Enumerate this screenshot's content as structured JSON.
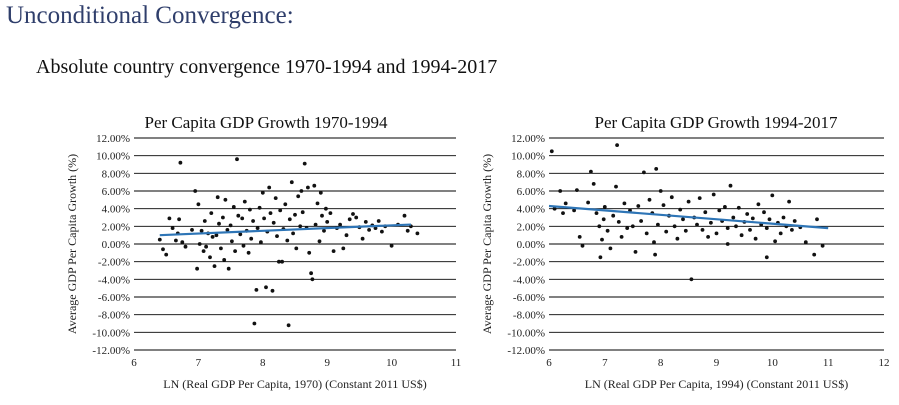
{
  "header": {
    "title": "Unconditional Convergence:",
    "subtitle": "Absolute country convergence 1970-1994 and 1994-2017"
  },
  "colors": {
    "title": "#2f3e6b",
    "trend": "#2e75b6",
    "point": "#111111",
    "grid": "#000000"
  },
  "chart_data": [
    {
      "type": "scatter",
      "title": "Per Capita GDP Growth 1970-1994",
      "xlabel": "LN (Real GDP Per Capita, 1970) (Constant 2011 US$)",
      "ylabel": "Average GDP Per Capita Growth (%)",
      "xlim": [
        6,
        11
      ],
      "ylim": [
        -12,
        12
      ],
      "x_ticks": [
        6,
        7,
        8,
        9,
        10,
        11
      ],
      "y_ticks": [
        12,
        10,
        8,
        6,
        4,
        2,
        0,
        -2,
        -4,
        -6,
        -8,
        -10,
        -12
      ],
      "y_tick_labels": [
        "12.00%",
        "10.00%",
        "8.00%",
        "6.00%",
        "4.00%",
        "2.00%",
        "0.00%",
        "-2.00%",
        "-4.00%",
        "-6.00%",
        "-8.00%",
        "-10.00%",
        "-12.00%"
      ],
      "grid": true,
      "trend": {
        "x": [
          6.4,
          10.3
        ],
        "y": [
          1.0,
          2.2
        ]
      },
      "points": [
        [
          6.4,
          0.5
        ],
        [
          6.45,
          -0.6
        ],
        [
          6.5,
          -1.2
        ],
        [
          6.55,
          2.9
        ],
        [
          6.6,
          1.8
        ],
        [
          6.65,
          0.4
        ],
        [
          6.68,
          1.2
        ],
        [
          6.7,
          2.8
        ],
        [
          6.72,
          9.2
        ],
        [
          6.75,
          0.2
        ],
        [
          6.8,
          -0.3
        ],
        [
          6.9,
          1.6
        ],
        [
          6.95,
          6.0
        ],
        [
          6.98,
          -2.8
        ],
        [
          7.0,
          4.5
        ],
        [
          7.02,
          0.0
        ],
        [
          7.05,
          1.5
        ],
        [
          7.08,
          -0.8
        ],
        [
          7.1,
          2.6
        ],
        [
          7.12,
          -0.3
        ],
        [
          7.15,
          1.2
        ],
        [
          7.18,
          -1.5
        ],
        [
          7.2,
          3.5
        ],
        [
          7.22,
          0.8
        ],
        [
          7.25,
          -2.5
        ],
        [
          7.28,
          1.0
        ],
        [
          7.3,
          5.3
        ],
        [
          7.32,
          2.3
        ],
        [
          7.35,
          -0.5
        ],
        [
          7.38,
          3.0
        ],
        [
          7.4,
          -1.8
        ],
        [
          7.42,
          5.0
        ],
        [
          7.45,
          1.6
        ],
        [
          7.47,
          -2.8
        ],
        [
          7.5,
          2.1
        ],
        [
          7.52,
          0.3
        ],
        [
          7.55,
          4.2
        ],
        [
          7.57,
          -0.8
        ],
        [
          7.6,
          9.6
        ],
        [
          7.62,
          3.2
        ],
        [
          7.65,
          1.1
        ],
        [
          7.68,
          2.9
        ],
        [
          7.7,
          -0.2
        ],
        [
          7.72,
          4.8
        ],
        [
          7.75,
          1.5
        ],
        [
          7.78,
          -1.0
        ],
        [
          7.8,
          3.9
        ],
        [
          7.82,
          0.6
        ],
        [
          7.85,
          2.6
        ],
        [
          7.87,
          -9.0
        ],
        [
          7.9,
          -5.2
        ],
        [
          7.92,
          1.8
        ],
        [
          7.95,
          4.1
        ],
        [
          7.97,
          0.2
        ],
        [
          8.0,
          5.8
        ],
        [
          8.02,
          2.9
        ],
        [
          8.05,
          -4.9
        ],
        [
          8.07,
          1.4
        ],
        [
          8.1,
          6.4
        ],
        [
          8.12,
          3.5
        ],
        [
          8.15,
          -5.3
        ],
        [
          8.17,
          2.4
        ],
        [
          8.2,
          5.2
        ],
        [
          8.22,
          0.9
        ],
        [
          8.25,
          -2.0
        ],
        [
          8.27,
          3.8
        ],
        [
          8.3,
          -2.0
        ],
        [
          8.32,
          1.7
        ],
        [
          8.35,
          4.5
        ],
        [
          8.38,
          0.4
        ],
        [
          8.4,
          -9.2
        ],
        [
          8.42,
          2.8
        ],
        [
          8.45,
          7.0
        ],
        [
          8.47,
          1.2
        ],
        [
          8.5,
          3.3
        ],
        [
          8.52,
          -0.5
        ],
        [
          8.55,
          5.4
        ],
        [
          8.58,
          2.0
        ],
        [
          8.6,
          6.0
        ],
        [
          8.62,
          3.6
        ],
        [
          8.65,
          9.1
        ],
        [
          8.68,
          1.8
        ],
        [
          8.7,
          6.4
        ],
        [
          8.72,
          -1.0
        ],
        [
          8.75,
          -3.3
        ],
        [
          8.77,
          -4.0
        ],
        [
          8.8,
          6.6
        ],
        [
          8.82,
          2.2
        ],
        [
          8.85,
          4.6
        ],
        [
          8.88,
          0.3
        ],
        [
          8.9,
          5.8
        ],
        [
          8.92,
          3.2
        ],
        [
          8.95,
          1.5
        ],
        [
          8.98,
          4.0
        ],
        [
          9.0,
          2.5
        ],
        [
          9.05,
          3.5
        ],
        [
          9.1,
          -0.8
        ],
        [
          9.15,
          1.8
        ],
        [
          9.2,
          2.2
        ],
        [
          9.25,
          -0.5
        ],
        [
          9.3,
          1.0
        ],
        [
          9.35,
          2.8
        ],
        [
          9.4,
          3.4
        ],
        [
          9.45,
          3.0
        ],
        [
          9.5,
          1.9
        ],
        [
          9.55,
          0.6
        ],
        [
          9.6,
          2.5
        ],
        [
          9.65,
          1.6
        ],
        [
          9.7,
          2.1
        ],
        [
          9.75,
          1.8
        ],
        [
          9.8,
          2.6
        ],
        [
          9.85,
          1.4
        ],
        [
          9.9,
          2.0
        ],
        [
          10.0,
          -0.2
        ],
        [
          10.1,
          2.2
        ],
        [
          10.2,
          3.2
        ],
        [
          10.25,
          1.5
        ],
        [
          10.3,
          2.0
        ],
        [
          10.4,
          1.2
        ]
      ]
    },
    {
      "type": "scatter",
      "title": "Per Capita GDP Growth 1994-2017",
      "xlabel": "LN (Real GDP Per Capita, 1994) (Constant 2011 US$)",
      "ylabel": "Average GDP Per Capita Growth (%)",
      "xlim": [
        6,
        12
      ],
      "ylim": [
        -12,
        12
      ],
      "x_ticks": [
        6,
        7,
        8,
        9,
        10,
        11,
        12
      ],
      "y_ticks": [
        12,
        10,
        8,
        6,
        4,
        2,
        0,
        -2,
        -4,
        -6,
        -8,
        -10,
        -12
      ],
      "y_tick_labels": [
        "12.00%",
        "10.00%",
        "8.00%",
        "6.00%",
        "4.00%",
        "2.00%",
        "0.00%",
        "-2.00%",
        "-4.00%",
        "-6.00%",
        "-8.00%",
        "-10.00%",
        "-12.00%"
      ],
      "grid": true,
      "trend": {
        "x": [
          6.0,
          11.0
        ],
        "y": [
          4.3,
          1.8
        ]
      },
      "points": [
        [
          6.05,
          10.5
        ],
        [
          6.1,
          4.0
        ],
        [
          6.2,
          6.0
        ],
        [
          6.25,
          3.5
        ],
        [
          6.3,
          4.6
        ],
        [
          6.45,
          3.8
        ],
        [
          6.5,
          6.1
        ],
        [
          6.55,
          0.8
        ],
        [
          6.6,
          -0.2
        ],
        [
          6.7,
          4.7
        ],
        [
          6.75,
          8.2
        ],
        [
          6.8,
          6.8
        ],
        [
          6.85,
          3.5
        ],
        [
          6.9,
          2.0
        ],
        [
          6.92,
          -1.5
        ],
        [
          6.95,
          0.5
        ],
        [
          6.98,
          2.8
        ],
        [
          7.0,
          4.2
        ],
        [
          7.05,
          1.5
        ],
        [
          7.1,
          -0.5
        ],
        [
          7.15,
          3.2
        ],
        [
          7.2,
          6.5
        ],
        [
          7.22,
          11.2
        ],
        [
          7.25,
          2.5
        ],
        [
          7.3,
          0.8
        ],
        [
          7.35,
          4.6
        ],
        [
          7.4,
          1.8
        ],
        [
          7.45,
          3.8
        ],
        [
          7.5,
          2.0
        ],
        [
          7.55,
          -0.9
        ],
        [
          7.6,
          4.3
        ],
        [
          7.65,
          2.6
        ],
        [
          7.7,
          8.1
        ],
        [
          7.75,
          1.2
        ],
        [
          7.8,
          5.0
        ],
        [
          7.85,
          3.5
        ],
        [
          7.88,
          0.2
        ],
        [
          7.9,
          -1.2
        ],
        [
          7.92,
          8.5
        ],
        [
          7.95,
          2.2
        ],
        [
          8.0,
          6.0
        ],
        [
          8.05,
          4.4
        ],
        [
          8.1,
          1.4
        ],
        [
          8.15,
          3.2
        ],
        [
          8.2,
          5.3
        ],
        [
          8.25,
          2.0
        ],
        [
          8.3,
          0.6
        ],
        [
          8.35,
          3.9
        ],
        [
          8.4,
          2.8
        ],
        [
          8.45,
          1.5
        ],
        [
          8.5,
          4.8
        ],
        [
          8.55,
          -4.0
        ],
        [
          8.6,
          3.0
        ],
        [
          8.65,
          2.2
        ],
        [
          8.7,
          5.2
        ],
        [
          8.75,
          1.6
        ],
        [
          8.8,
          3.6
        ],
        [
          8.85,
          0.8
        ],
        [
          8.9,
          2.4
        ],
        [
          8.95,
          5.6
        ],
        [
          9.0,
          1.2
        ],
        [
          9.05,
          3.8
        ],
        [
          9.1,
          2.6
        ],
        [
          9.15,
          4.2
        ],
        [
          9.2,
          1.8
        ],
        [
          9.25,
          6.6
        ],
        [
          9.3,
          3.0
        ],
        [
          9.35,
          2.0
        ],
        [
          9.4,
          4.1
        ],
        [
          9.45,
          1.0
        ],
        [
          9.5,
          2.5
        ],
        [
          9.55,
          3.4
        ],
        [
          9.6,
          1.6
        ],
        [
          9.65,
          2.9
        ],
        [
          9.7,
          0.6
        ],
        [
          9.75,
          4.5
        ],
        [
          9.8,
          2.2
        ],
        [
          9.85,
          3.6
        ],
        [
          9.9,
          1.8
        ],
        [
          9.95,
          2.8
        ],
        [
          10.0,
          5.5
        ],
        [
          10.05,
          0.3
        ],
        [
          10.1,
          2.4
        ],
        [
          10.15,
          1.2
        ],
        [
          10.2,
          3.0
        ],
        [
          10.25,
          2.0
        ],
        [
          10.3,
          4.8
        ],
        [
          10.35,
          1.6
        ],
        [
          10.4,
          2.6
        ],
        [
          10.5,
          1.9
        ],
        [
          10.6,
          0.2
        ],
        [
          10.75,
          -1.2
        ],
        [
          10.8,
          2.8
        ],
        [
          10.9,
          -0.2
        ],
        [
          9.9,
          -1.5
        ],
        [
          9.2,
          0.0
        ]
      ]
    }
  ]
}
